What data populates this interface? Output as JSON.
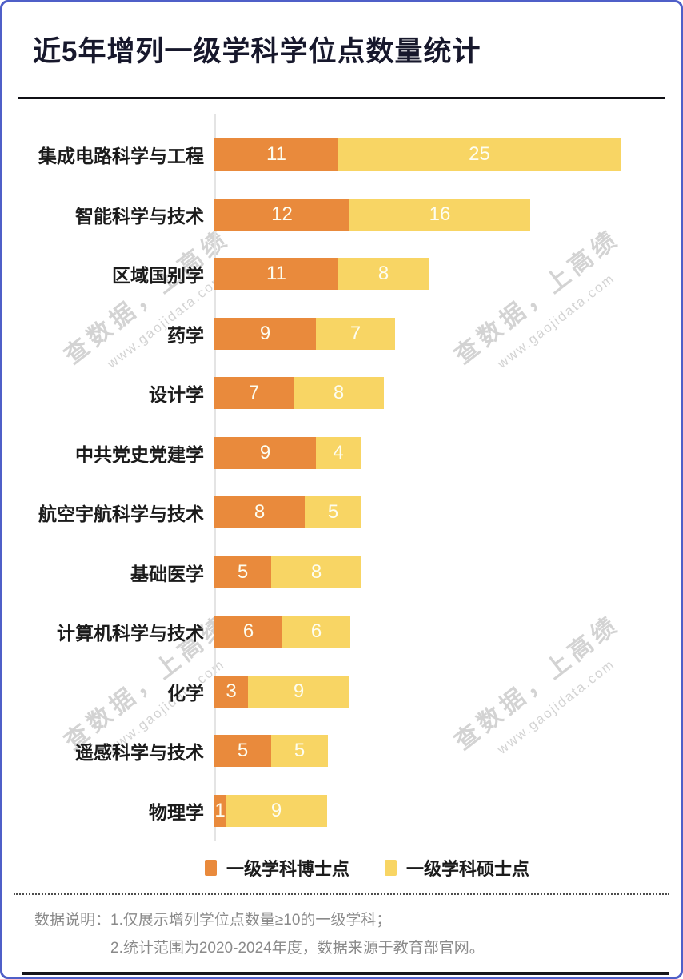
{
  "page": {
    "title": "近5年增列一级学科学位点数量统计",
    "border_color": "#4f5fc8"
  },
  "chart_data": {
    "type": "bar",
    "orientation": "horizontal",
    "stacked": true,
    "title": "近5年增列一级学科学位点数量统计",
    "xlabel": "",
    "ylabel": "",
    "xlim": [
      0,
      36
    ],
    "grid": false,
    "legend_position": "bottom",
    "categories": [
      "集成电路科学与工程",
      "智能科学与技术",
      "区域国别学",
      "药学",
      "设计学",
      "中共党史党建学",
      "航空宇航科学与技术",
      "基础医学",
      "计算机科学与技术",
      "化学",
      "遥感科学与技术",
      "物理学"
    ],
    "series": [
      {
        "name": "一级学科博士点",
        "color": "#e98a3c",
        "values": [
          11,
          12,
          11,
          9,
          7,
          9,
          8,
          5,
          6,
          3,
          5,
          1
        ]
      },
      {
        "name": "一级学科硕士点",
        "color": "#f8d564",
        "values": [
          25,
          16,
          8,
          7,
          8,
          4,
          5,
          8,
          6,
          9,
          5,
          9
        ]
      }
    ]
  },
  "legend": {
    "items": [
      {
        "label": "一级学科博士点",
        "color": "#e98a3c"
      },
      {
        "label": "一级学科硕士点",
        "color": "#f8d564"
      }
    ]
  },
  "footer": {
    "label": "数据说明：",
    "line1": "1.仅展示增列学位点数量≥10的一级学科；",
    "line2": "2.统计范围为2020-2024年度，数据来源于教育部官网。"
  },
  "watermark": {
    "main": "查数据，上高绩",
    "sub": "www.gaojidata.com"
  }
}
